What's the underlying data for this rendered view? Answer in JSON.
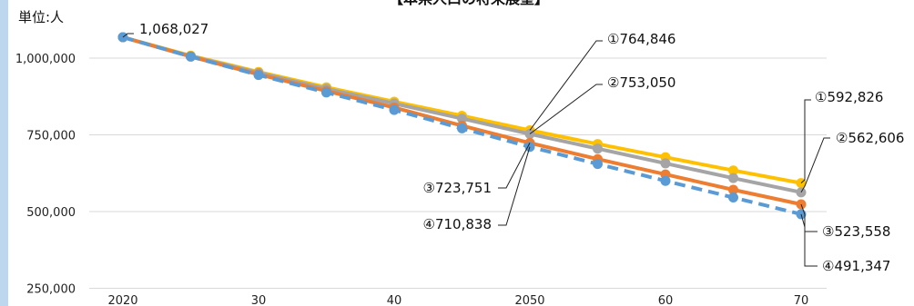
{
  "chart_data": {
    "type": "line",
    "title": "【本県人口の将来展望】",
    "unit_label": "単位:人",
    "x": [
      2020,
      2025,
      2030,
      2035,
      2040,
      2045,
      2050,
      2055,
      2060,
      2065,
      2070
    ],
    "x_tick_labels": [
      "2020",
      "30",
      "40",
      "2050",
      "60",
      "70"
    ],
    "x_tick_values": [
      2020,
      2030,
      2040,
      2050,
      2060,
      2070
    ],
    "ylim": [
      250000,
      1100000
    ],
    "y_ticks": [
      250000,
      500000,
      750000,
      1000000
    ],
    "y_tick_labels": [
      "250,000",
      "500,000",
      "750,000",
      "1,000,000"
    ],
    "grid": "horizontal",
    "series": [
      {
        "color": "#FFC000",
        "dashed": false,
        "values": [
          1068027,
          1008000,
          955000,
          905000,
          858000,
          812000,
          764846,
          720000,
          677000,
          634000,
          592826
        ]
      },
      {
        "color": "#A5A5A5",
        "dashed": false,
        "values": [
          1068027,
          1006000,
          952000,
          900000,
          852000,
          803000,
          753050,
          705000,
          657000,
          609000,
          562606
        ]
      },
      {
        "color": "#ED7D31",
        "dashed": false,
        "values": [
          1068027,
          1005000,
          947000,
          893000,
          839000,
          780000,
          723751,
          671000,
          621000,
          571000,
          523558
        ]
      },
      {
        "color": "#5B9BD5",
        "dashed": true,
        "values": [
          1068027,
          1005000,
          945000,
          888000,
          831000,
          771000,
          710838,
          655000,
          600000,
          546000,
          491347
        ]
      }
    ],
    "annotations": [
      {
        "text": "1,068,027",
        "x": 2020,
        "y": 1068027
      },
      {
        "text": "①764,846",
        "x": 2050,
        "y": 764846
      },
      {
        "text": "②753,050",
        "x": 2050,
        "y": 753050
      },
      {
        "text": "③723,751",
        "x": 2050,
        "y": 723751
      },
      {
        "text": "④710,838",
        "x": 2050,
        "y": 710838
      },
      {
        "text": "①592,826",
        "x": 2070,
        "y": 592826
      },
      {
        "text": "②562,606",
        "x": 2070,
        "y": 562606
      },
      {
        "text": "③523,558",
        "x": 2070,
        "y": 523558
      },
      {
        "text": "④491,347",
        "x": 2070,
        "y": 491347
      }
    ],
    "axis_color": "#D9D9D9",
    "side_bar_color": "#BDD7EE"
  }
}
